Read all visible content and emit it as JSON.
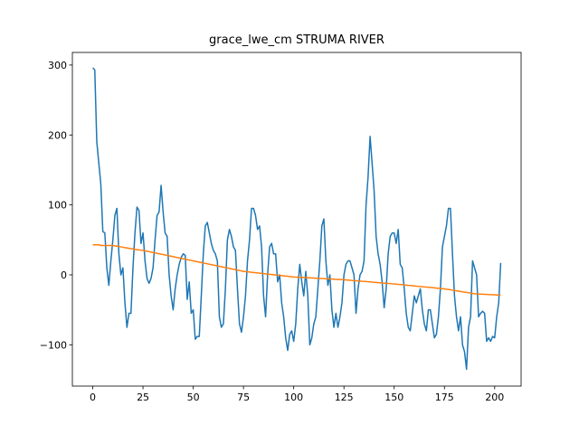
{
  "chart_data": {
    "type": "line",
    "title": "grace_lwe_cm STRUMA RIVER",
    "xlim": [
      -10.15,
      213.15
    ],
    "xticks": [
      0,
      25,
      50,
      75,
      100,
      125,
      150,
      175,
      200
    ],
    "ylim": [
      -159,
      318
    ],
    "yticks": [
      {
        "value": -100,
        "label": "−100"
      },
      0,
      100,
      200,
      300
    ],
    "series": [
      {
        "color": "#1f77b4",
        "values": [
          296,
          293,
          190,
          160,
          130,
          62,
          60,
          10,
          -15,
          20,
          50,
          85,
          95,
          30,
          0,
          10,
          -40,
          -75,
          -55,
          -55,
          10,
          60,
          97,
          92,
          45,
          60,
          20,
          -5,
          -12,
          -5,
          10,
          50,
          85,
          90,
          128,
          90,
          60,
          55,
          0,
          -30,
          -50,
          -20,
          0,
          15,
          25,
          30,
          28,
          -35,
          -10,
          -55,
          -50,
          -92,
          -88,
          -88,
          -30,
          30,
          70,
          75,
          60,
          45,
          35,
          30,
          20,
          -60,
          -75,
          -70,
          -20,
          50,
          65,
          55,
          40,
          35,
          -20,
          -70,
          -82,
          -60,
          -30,
          20,
          50,
          95,
          95,
          85,
          65,
          70,
          40,
          -30,
          -60,
          0,
          40,
          45,
          30,
          30,
          -10,
          0,
          -40,
          -60,
          -90,
          -108,
          -85,
          -80,
          -95,
          -70,
          -20,
          15,
          -10,
          -30,
          5,
          -30,
          -100,
          -90,
          -70,
          -60,
          -20,
          20,
          70,
          80,
          20,
          -15,
          0,
          -50,
          -75,
          -55,
          -75,
          -60,
          -40,
          0,
          15,
          20,
          20,
          10,
          0,
          -55,
          -20,
          0,
          5,
          20,
          100,
          140,
          198,
          160,
          120,
          55,
          30,
          15,
          -10,
          -47,
          -20,
          30,
          55,
          60,
          60,
          45,
          65,
          15,
          10,
          -20,
          -55,
          -75,
          -80,
          -55,
          -30,
          -40,
          -30,
          -20,
          -50,
          -70,
          -80,
          -50,
          -50,
          -70,
          -90,
          -85,
          -60,
          -20,
          40,
          55,
          70,
          95,
          95,
          30,
          -30,
          -60,
          -80,
          -60,
          -100,
          -110,
          -135,
          -75,
          -60,
          20,
          10,
          0,
          -60,
          -55,
          -52,
          -55,
          -95,
          -90,
          -95,
          -88,
          -90,
          -60,
          -40,
          17
        ]
      },
      {
        "color": "#ff7f0e",
        "values": [
          43,
          43,
          43,
          43,
          42,
          42,
          42,
          42,
          42,
          42,
          42,
          41.5,
          41,
          40.5,
          40,
          39.5,
          39,
          38.5,
          38,
          37.5,
          37,
          36.5,
          36,
          35.7,
          35.3,
          35,
          34.4,
          33.8,
          33.2,
          32.6,
          32,
          31.4,
          30.8,
          30.2,
          29.6,
          29,
          28.4,
          27.8,
          27.2,
          26.6,
          26,
          25.4,
          24.8,
          24.2,
          23.6,
          23,
          22.4,
          21.8,
          21.2,
          20.6,
          20,
          19.4,
          18.8,
          18.2,
          17.6,
          17,
          16.4,
          15.8,
          15.2,
          14.6,
          14,
          13.4,
          12.8,
          12.2,
          11.6,
          11,
          10.4,
          9.8,
          9.2,
          8.6,
          8,
          7.4,
          6.8,
          6.2,
          5.6,
          5,
          4.7,
          4.4,
          4,
          3.7,
          3.4,
          3.1,
          2.8,
          2.4,
          2.1,
          1.8,
          1.5,
          1.2,
          0.8,
          0.5,
          0.2,
          -0.1,
          -0.4,
          -0.8,
          -1.1,
          -1.4,
          -1.7,
          -2,
          -2.4,
          -2.7,
          -3,
          -3.2,
          -3.3,
          -3.5,
          -3.6,
          -3.8,
          -4,
          -4.1,
          -4.3,
          -4.4,
          -4.6,
          -4.8,
          -4.9,
          -5.1,
          -5.2,
          -5.4,
          -5.6,
          -5.7,
          -5.9,
          -6,
          -6.2,
          -6.4,
          -6.5,
          -6.7,
          -6.8,
          -7,
          -7.2,
          -7.5,
          -7.7,
          -8,
          -8.2,
          -8.4,
          -8.7,
          -8.9,
          -9.2,
          -9.4,
          -9.6,
          -9.9,
          -10.1,
          -10.4,
          -10.6,
          -10.8,
          -11.1,
          -11.3,
          -11.6,
          -11.8,
          -12,
          -12.3,
          -12.5,
          -12.8,
          -13,
          -13.3,
          -13.6,
          -13.8,
          -14.1,
          -14.4,
          -14.7,
          -15,
          -15.2,
          -15.5,
          -15.8,
          -16.1,
          -16.4,
          -16.6,
          -16.9,
          -17.2,
          -17.5,
          -17.8,
          -18,
          -18.3,
          -18.6,
          -18.9,
          -19.2,
          -19.4,
          -19.7,
          -20,
          -20.5,
          -20.9,
          -21.4,
          -21.9,
          -22.3,
          -22.8,
          -23.3,
          -23.7,
          -24.2,
          -24.7,
          -25.1,
          -25.6,
          -26.1,
          -26.5,
          -27,
          -27.2,
          -27.3,
          -27.5,
          -27.6,
          -27.8,
          -27.9,
          -28.1,
          -28.2,
          -28.4,
          -28.5,
          -28.7,
          -28.8,
          -29
        ]
      }
    ]
  }
}
